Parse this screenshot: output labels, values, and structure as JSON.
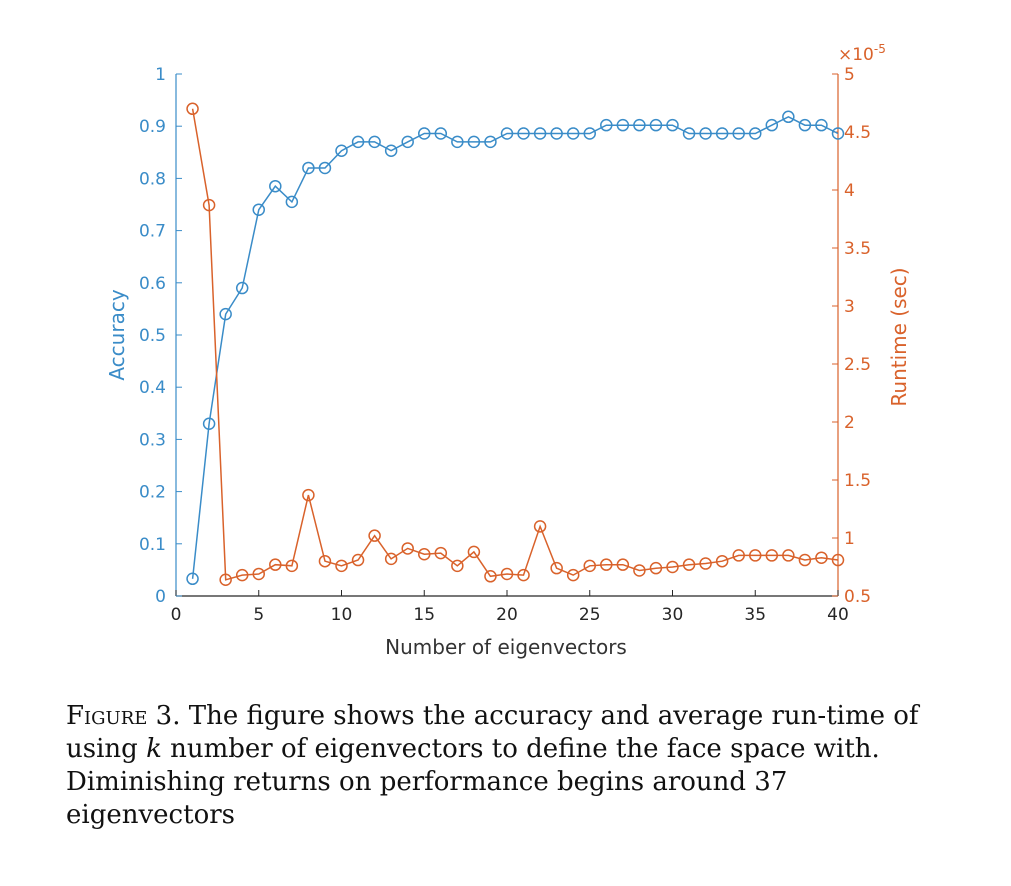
{
  "chart_data": {
    "type": "line",
    "x": [
      1,
      2,
      3,
      4,
      5,
      6,
      7,
      8,
      9,
      10,
      11,
      12,
      13,
      14,
      15,
      16,
      17,
      18,
      19,
      20,
      21,
      22,
      23,
      24,
      25,
      26,
      27,
      28,
      29,
      30,
      31,
      32,
      33,
      34,
      35,
      36,
      37,
      38,
      39,
      40
    ],
    "xlabel": "Number of eigenvectors",
    "xlim": [
      0,
      40
    ],
    "xticks": [
      "0",
      "5",
      "10",
      "15",
      "20",
      "25",
      "30",
      "35",
      "40"
    ],
    "series": [
      {
        "axis": "left",
        "color": "#3a8cc8",
        "marker": "circle",
        "values": [
          0.033,
          0.33,
          0.54,
          0.59,
          0.74,
          0.785,
          0.755,
          0.82,
          0.82,
          0.853,
          0.87,
          0.87,
          0.853,
          0.87,
          0.886,
          0.886,
          0.87,
          0.87,
          0.87,
          0.886,
          0.886,
          0.886,
          0.886,
          0.886,
          0.886,
          0.902,
          0.902,
          0.902,
          0.902,
          0.902,
          0.886,
          0.886,
          0.886,
          0.886,
          0.886,
          0.902,
          0.918,
          0.902,
          0.902,
          0.886
        ]
      },
      {
        "axis": "right",
        "color": "#d9622b",
        "marker": "circle",
        "values": [
          4.7,
          3.87,
          0.64,
          0.68,
          0.69,
          0.77,
          0.76,
          1.37,
          0.8,
          0.76,
          0.81,
          1.02,
          0.82,
          0.91,
          0.86,
          0.87,
          0.76,
          0.88,
          0.67,
          0.69,
          0.68,
          1.1,
          0.74,
          0.68,
          0.76,
          0.77,
          0.77,
          0.72,
          0.74,
          0.75,
          0.77,
          0.78,
          0.8,
          0.85,
          0.85,
          0.85,
          0.85,
          0.81,
          0.83,
          0.81
        ]
      }
    ],
    "y_left": {
      "label": "Accuracy",
      "ylim": [
        0,
        1
      ],
      "ticks": [
        "0",
        "0.1",
        "0.2",
        "0.3",
        "0.4",
        "0.5",
        "0.6",
        "0.7",
        "0.8",
        "0.9",
        "1"
      ],
      "color": "#3a8cc8"
    },
    "y_right": {
      "label": "Runtime (sec)",
      "ylim": [
        0.5,
        5
      ],
      "ticks": [
        "0.5",
        "1",
        "1.5",
        "2",
        "2.5",
        "3",
        "3.5",
        "4",
        "4.5",
        "5"
      ],
      "multiplier": "×10",
      "exponent": "-5",
      "color": "#d9622b"
    },
    "grid": false,
    "legend": "none"
  },
  "caption": {
    "label": "Figure 3.",
    "text_before_k": "The figure shows the accuracy and average run-time of using ",
    "k": "k",
    "text_after_k": " number of eigenvectors to define the face space with. Diminishing returns on performance begins around 37 eigenvectors"
  }
}
